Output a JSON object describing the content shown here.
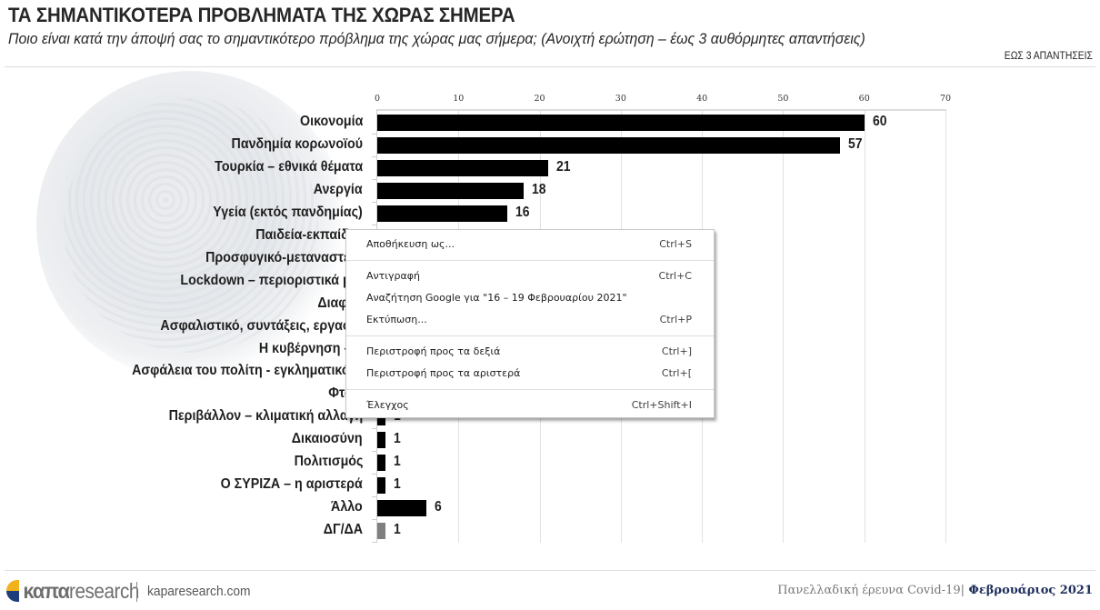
{
  "header": {
    "title": "ΤΑ ΣΗΜΑΝΤΙΚΟΤΕΡΑ ΠΡΟΒΛΗΜΑΤΑ ΤΗΣ ΧΩΡΑΣ ΣΗΜΕΡΑ",
    "subtitle": "Ποιο είναι κατά την άποψή σας το σημαντικότερο πρόβλημα της χώρας μας σήμερα; (Ανοιχτή ερώτηση – έως 3 αυθόρμητες απαντήσεις)",
    "tag": "ΕΩΣ 3 ΑΠΑΝΤΗΣΕΙΣ"
  },
  "chart_data": {
    "type": "bar",
    "orientation": "horizontal",
    "title": "ΤΑ ΣΗΜΑΝΤΙΚΟΤΕΡΑ ΠΡΟΒΛΗΜΑΤΑ ΤΗΣ ΧΩΡΑΣ ΣΗΜΕΡΑ",
    "xlabel": "",
    "ylabel": "",
    "xlim": [
      0,
      70
    ],
    "xticks": [
      "0",
      "10",
      "20",
      "30",
      "40",
      "50",
      "60",
      "70"
    ],
    "grid": true,
    "legend": null,
    "categories": [
      "Οικονομία",
      "Πανδημία κορωνοϊού",
      "Τουρκία – εθνικά θέματα",
      "Ανεργία",
      "Υγεία (εκτός πανδημίας)",
      "Παιδεία-εκπαίδευ",
      "Προσφυγικό-μεταναστευτ",
      "Lockdown – περιοριστικά μέτ",
      "Διαφθο",
      "Ασφαλιστικό, συντάξεις, εργασια",
      "Η κυβέρνηση – η",
      "Ασφάλεια του πολίτη - εγκληματικότη",
      "Φτώχ",
      "Περιβάλλον – κλιματική αλλαγή",
      "Δικαιοσύνη",
      "Πολιτισμός",
      "Ο ΣΥΡΙΖΑ – η αριστερά",
      "Άλλο",
      "ΔΓ/ΔΑ"
    ],
    "values": [
      60,
      57,
      21,
      18,
      16,
      null,
      null,
      null,
      null,
      null,
      null,
      null,
      null,
      1,
      1,
      1,
      1,
      6,
      1
    ],
    "value_labels": [
      "60",
      "57",
      "21",
      "18",
      "16",
      "",
      "",
      "",
      "",
      "",
      "",
      "",
      "",
      "1",
      "1",
      "1",
      "1",
      "6",
      "1"
    ],
    "colors": {
      "bar": "#000000",
      "dgda_bar": "#7f7f7f",
      "grid": "#e2e2e2"
    }
  },
  "context_menu": {
    "groups": [
      [
        {
          "label": "Αποθήκευση ως...",
          "shortcut": "Ctrl+S"
        }
      ],
      [
        {
          "label": "Αντιγραφή",
          "shortcut": "Ctrl+C"
        },
        {
          "label": "Αναζήτηση Google για \"16 – 19 Φεβρουαρίου 2021\"",
          "shortcut": ""
        },
        {
          "label": "Εκτύπωση...",
          "shortcut": "Ctrl+P"
        }
      ],
      [
        {
          "label": "Περιστροφή προς τα δεξιά",
          "shortcut": "Ctrl+]"
        },
        {
          "label": "Περιστροφή προς τα αριστερά",
          "shortcut": "Ctrl+["
        }
      ],
      [
        {
          "label": "Έλεγχος",
          "shortcut": "Ctrl+Shift+I"
        }
      ]
    ]
  },
  "footer": {
    "logo_bold": "καπα",
    "logo_light": "research",
    "site": "kaparesearch.com",
    "survey": "Πανελλαδική έρευνα Covid-19|",
    "month": " Φεβρουάριος 2021"
  }
}
